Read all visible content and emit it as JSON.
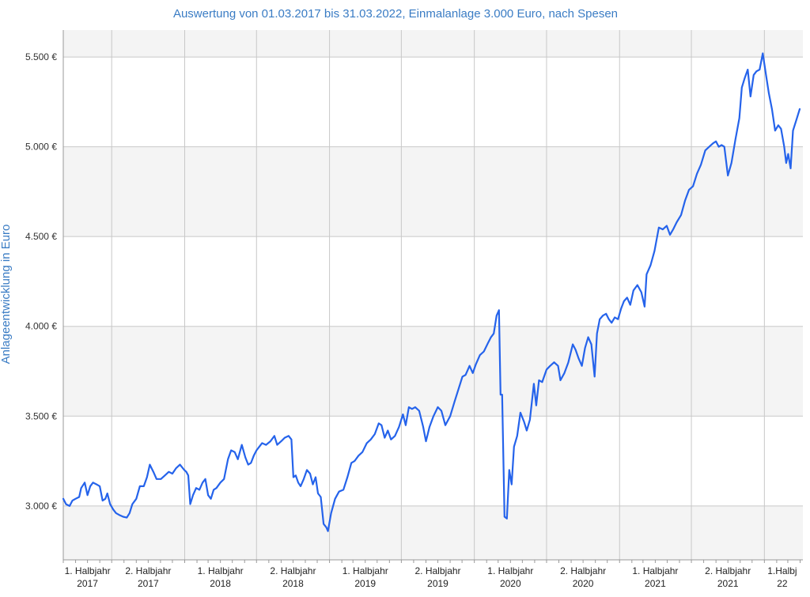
{
  "chart_data": {
    "type": "line",
    "title": "Auswertung von 01.03.2017 bis 31.03.2022, Einmalanlage 3.000 Euro, nach Spesen",
    "ylabel": "Anlageentwicklung  in Euro",
    "ylim": [
      2700,
      5650
    ],
    "y_ticks": [
      {
        "value": 3000,
        "label": "3.000 €"
      },
      {
        "value": 3500,
        "label": "3.500 €"
      },
      {
        "value": 4000,
        "label": "4.000 €"
      },
      {
        "value": 4500,
        "label": "4.500 €"
      },
      {
        "value": 5000,
        "label": "5.000 €"
      },
      {
        "value": 5500,
        "label": "5.500 €"
      }
    ],
    "x_range": [
      "2017-03-01",
      "2022-04-08"
    ],
    "x_period_starts": [
      "2017-01-01",
      "2017-07-01",
      "2018-01-01",
      "2018-07-01",
      "2019-01-01",
      "2019-07-01",
      "2020-01-01",
      "2020-07-01",
      "2021-01-01",
      "2021-07-01",
      "2022-01-01"
    ],
    "x_ticks": [
      {
        "line1": "1. Halbjahr",
        "line2": "2017",
        "center": "2017-05-01"
      },
      {
        "line1": "2. Halbjahr",
        "line2": "2017",
        "center": "2017-10-01"
      },
      {
        "line1": "1. Halbjahr",
        "line2": "2018",
        "center": "2018-04-01"
      },
      {
        "line1": "2. Halbjahr",
        "line2": "2018",
        "center": "2018-10-01"
      },
      {
        "line1": "1. Halbjahr",
        "line2": "2019",
        "center": "2019-04-01"
      },
      {
        "line1": "2. Halbjahr",
        "line2": "2019",
        "center": "2019-10-01"
      },
      {
        "line1": "1. Halbjahr",
        "line2": "2020",
        "center": "2020-04-01"
      },
      {
        "line1": "2. Halbjahr",
        "line2": "2020",
        "center": "2020-10-01"
      },
      {
        "line1": "1. Halbjahr",
        "line2": "2021",
        "center": "2021-04-01"
      },
      {
        "line1": "2. Halbjahr",
        "line2": "2021",
        "center": "2021-10-01"
      },
      {
        "line1": "1.Halbj",
        "line2": "22",
        "center": "2022-02-15"
      }
    ],
    "grid": true,
    "series": [
      {
        "color": "#2563eb",
        "points": [
          [
            "2017-03-01",
            3040
          ],
          [
            "2017-03-08",
            3010
          ],
          [
            "2017-03-17",
            3000
          ],
          [
            "2017-03-24",
            3030
          ],
          [
            "2017-04-01",
            3040
          ],
          [
            "2017-04-10",
            3050
          ],
          [
            "2017-04-15",
            3100
          ],
          [
            "2017-04-24",
            3130
          ],
          [
            "2017-05-01",
            3060
          ],
          [
            "2017-05-08",
            3110
          ],
          [
            "2017-05-15",
            3130
          ],
          [
            "2017-05-24",
            3120
          ],
          [
            "2017-06-01",
            3110
          ],
          [
            "2017-06-08",
            3030
          ],
          [
            "2017-06-15",
            3040
          ],
          [
            "2017-06-20",
            3070
          ],
          [
            "2017-06-27",
            3010
          ],
          [
            "2017-07-05",
            2980
          ],
          [
            "2017-07-12",
            2960
          ],
          [
            "2017-07-20",
            2950
          ],
          [
            "2017-07-30",
            2940
          ],
          [
            "2017-08-08",
            2935
          ],
          [
            "2017-08-15",
            2960
          ],
          [
            "2017-08-22",
            3010
          ],
          [
            "2017-09-01",
            3040
          ],
          [
            "2017-09-10",
            3110
          ],
          [
            "2017-09-20",
            3110
          ],
          [
            "2017-09-28",
            3160
          ],
          [
            "2017-10-05",
            3230
          ],
          [
            "2017-10-14",
            3190
          ],
          [
            "2017-10-22",
            3150
          ],
          [
            "2017-11-02",
            3150
          ],
          [
            "2017-11-12",
            3170
          ],
          [
            "2017-11-22",
            3190
          ],
          [
            "2017-12-01",
            3180
          ],
          [
            "2017-12-10",
            3210
          ],
          [
            "2017-12-20",
            3230
          ],
          [
            "2017-12-31",
            3200
          ],
          [
            "2018-01-05",
            3190
          ],
          [
            "2018-01-10",
            3170
          ],
          [
            "2018-01-15",
            3010
          ],
          [
            "2018-01-22",
            3060
          ],
          [
            "2018-01-30",
            3100
          ],
          [
            "2018-02-07",
            3090
          ],
          [
            "2018-02-15",
            3130
          ],
          [
            "2018-02-22",
            3150
          ],
          [
            "2018-03-01",
            3060
          ],
          [
            "2018-03-08",
            3040
          ],
          [
            "2018-03-15",
            3090
          ],
          [
            "2018-03-22",
            3100
          ],
          [
            "2018-04-01",
            3130
          ],
          [
            "2018-04-10",
            3150
          ],
          [
            "2018-04-20",
            3260
          ],
          [
            "2018-04-28",
            3310
          ],
          [
            "2018-05-07",
            3300
          ],
          [
            "2018-05-15",
            3260
          ],
          [
            "2018-05-25",
            3340
          ],
          [
            "2018-06-03",
            3270
          ],
          [
            "2018-06-10",
            3230
          ],
          [
            "2018-06-17",
            3240
          ],
          [
            "2018-06-24",
            3280
          ],
          [
            "2018-07-01",
            3310
          ],
          [
            "2018-07-08",
            3330
          ],
          [
            "2018-07-15",
            3350
          ],
          [
            "2018-07-25",
            3340
          ],
          [
            "2018-08-05",
            3360
          ],
          [
            "2018-08-15",
            3390
          ],
          [
            "2018-08-22",
            3340
          ],
          [
            "2018-09-01",
            3360
          ],
          [
            "2018-09-10",
            3380
          ],
          [
            "2018-09-20",
            3390
          ],
          [
            "2018-09-27",
            3370
          ],
          [
            "2018-10-02",
            3160
          ],
          [
            "2018-10-08",
            3170
          ],
          [
            "2018-10-14",
            3130
          ],
          [
            "2018-10-20",
            3110
          ],
          [
            "2018-10-28",
            3150
          ],
          [
            "2018-11-05",
            3200
          ],
          [
            "2018-11-13",
            3180
          ],
          [
            "2018-11-20",
            3120
          ],
          [
            "2018-11-27",
            3160
          ],
          [
            "2018-12-03",
            3070
          ],
          [
            "2018-12-10",
            3050
          ],
          [
            "2018-12-17",
            2900
          ],
          [
            "2018-12-24",
            2880
          ],
          [
            "2018-12-28",
            2860
          ],
          [
            "2019-01-05",
            2960
          ],
          [
            "2019-01-15",
            3040
          ],
          [
            "2019-01-25",
            3080
          ],
          [
            "2019-02-05",
            3090
          ],
          [
            "2019-02-15",
            3160
          ],
          [
            "2019-02-25",
            3240
          ],
          [
            "2019-03-05",
            3250
          ],
          [
            "2019-03-15",
            3280
          ],
          [
            "2019-03-25",
            3300
          ],
          [
            "2019-04-05",
            3350
          ],
          [
            "2019-04-15",
            3370
          ],
          [
            "2019-04-25",
            3400
          ],
          [
            "2019-05-05",
            3460
          ],
          [
            "2019-05-12",
            3450
          ],
          [
            "2019-05-20",
            3380
          ],
          [
            "2019-05-28",
            3420
          ],
          [
            "2019-06-05",
            3370
          ],
          [
            "2019-06-15",
            3390
          ],
          [
            "2019-06-25",
            3440
          ],
          [
            "2019-07-05",
            3510
          ],
          [
            "2019-07-12",
            3450
          ],
          [
            "2019-07-20",
            3550
          ],
          [
            "2019-07-28",
            3540
          ],
          [
            "2019-08-05",
            3550
          ],
          [
            "2019-08-15",
            3530
          ],
          [
            "2019-08-25",
            3440
          ],
          [
            "2019-09-01",
            3360
          ],
          [
            "2019-09-10",
            3440
          ],
          [
            "2019-09-20",
            3500
          ],
          [
            "2019-10-01",
            3550
          ],
          [
            "2019-10-10",
            3530
          ],
          [
            "2019-10-20",
            3450
          ],
          [
            "2019-11-01",
            3500
          ],
          [
            "2019-11-12",
            3580
          ],
          [
            "2019-11-22",
            3650
          ],
          [
            "2019-12-02",
            3720
          ],
          [
            "2019-12-10",
            3730
          ],
          [
            "2019-12-20",
            3780
          ],
          [
            "2019-12-28",
            3740
          ],
          [
            "2020-01-05",
            3790
          ],
          [
            "2020-01-15",
            3840
          ],
          [
            "2020-01-25",
            3860
          ],
          [
            "2020-02-05",
            3910
          ],
          [
            "2020-02-12",
            3940
          ],
          [
            "2020-02-19",
            3960
          ],
          [
            "2020-02-26",
            4060
          ],
          [
            "2020-03-03",
            4090
          ],
          [
            "2020-03-07",
            3620
          ],
          [
            "2020-03-11",
            3620
          ],
          [
            "2020-03-17",
            2940
          ],
          [
            "2020-03-23",
            2930
          ],
          [
            "2020-03-29",
            3200
          ],
          [
            "2020-04-04",
            3120
          ],
          [
            "2020-04-10",
            3330
          ],
          [
            "2020-04-18",
            3390
          ],
          [
            "2020-04-26",
            3520
          ],
          [
            "2020-05-05",
            3470
          ],
          [
            "2020-05-12",
            3420
          ],
          [
            "2020-05-20",
            3480
          ],
          [
            "2020-05-30",
            3680
          ],
          [
            "2020-06-05",
            3560
          ],
          [
            "2020-06-12",
            3700
          ],
          [
            "2020-06-20",
            3690
          ],
          [
            "2020-07-01",
            3760
          ],
          [
            "2020-07-10",
            3780
          ],
          [
            "2020-07-20",
            3800
          ],
          [
            "2020-07-30",
            3780
          ],
          [
            "2020-08-05",
            3700
          ],
          [
            "2020-08-15",
            3740
          ],
          [
            "2020-08-25",
            3800
          ],
          [
            "2020-09-05",
            3900
          ],
          [
            "2020-09-12",
            3870
          ],
          [
            "2020-09-20",
            3820
          ],
          [
            "2020-09-28",
            3780
          ],
          [
            "2020-10-06",
            3880
          ],
          [
            "2020-10-14",
            3940
          ],
          [
            "2020-10-22",
            3900
          ],
          [
            "2020-10-30",
            3720
          ],
          [
            "2020-11-05",
            3960
          ],
          [
            "2020-11-12",
            4040
          ],
          [
            "2020-11-20",
            4060
          ],
          [
            "2020-11-28",
            4070
          ],
          [
            "2020-12-05",
            4040
          ],
          [
            "2020-12-12",
            4020
          ],
          [
            "2020-12-20",
            4050
          ],
          [
            "2020-12-28",
            4040
          ],
          [
            "2021-01-05",
            4100
          ],
          [
            "2021-01-12",
            4140
          ],
          [
            "2021-01-20",
            4160
          ],
          [
            "2021-01-28",
            4120
          ],
          [
            "2021-02-05",
            4200
          ],
          [
            "2021-02-15",
            4230
          ],
          [
            "2021-02-25",
            4190
          ],
          [
            "2021-03-05",
            4110
          ],
          [
            "2021-03-10",
            4290
          ],
          [
            "2021-03-20",
            4340
          ],
          [
            "2021-03-30",
            4420
          ],
          [
            "2021-04-10",
            4550
          ],
          [
            "2021-04-20",
            4540
          ],
          [
            "2021-04-30",
            4560
          ],
          [
            "2021-05-08",
            4510
          ],
          [
            "2021-05-16",
            4540
          ],
          [
            "2021-05-25",
            4580
          ],
          [
            "2021-06-05",
            4620
          ],
          [
            "2021-06-15",
            4700
          ],
          [
            "2021-06-25",
            4760
          ],
          [
            "2021-07-05",
            4780
          ],
          [
            "2021-07-15",
            4850
          ],
          [
            "2021-07-25",
            4900
          ],
          [
            "2021-08-05",
            4980
          ],
          [
            "2021-08-15",
            5000
          ],
          [
            "2021-08-25",
            5020
          ],
          [
            "2021-09-01",
            5030
          ],
          [
            "2021-09-08",
            5000
          ],
          [
            "2021-09-15",
            5010
          ],
          [
            "2021-09-22",
            5000
          ],
          [
            "2021-10-01",
            4840
          ],
          [
            "2021-10-10",
            4910
          ],
          [
            "2021-10-20",
            5040
          ],
          [
            "2021-10-30",
            5160
          ],
          [
            "2021-11-05",
            5330
          ],
          [
            "2021-11-12",
            5380
          ],
          [
            "2021-11-20",
            5430
          ],
          [
            "2021-11-27",
            5280
          ],
          [
            "2021-12-05",
            5400
          ],
          [
            "2021-12-12",
            5420
          ],
          [
            "2021-12-20",
            5430
          ],
          [
            "2021-12-28",
            5520
          ],
          [
            "2022-01-05",
            5400
          ],
          [
            "2022-01-12",
            5300
          ],
          [
            "2022-01-20",
            5210
          ],
          [
            "2022-01-28",
            5090
          ],
          [
            "2022-02-05",
            5120
          ],
          [
            "2022-02-12",
            5100
          ],
          [
            "2022-02-20",
            5000
          ],
          [
            "2022-02-25",
            4910
          ],
          [
            "2022-03-02",
            4960
          ],
          [
            "2022-03-08",
            4880
          ],
          [
            "2022-03-14",
            5090
          ],
          [
            "2022-03-24",
            5160
          ],
          [
            "2022-03-31",
            5210
          ]
        ]
      }
    ]
  }
}
